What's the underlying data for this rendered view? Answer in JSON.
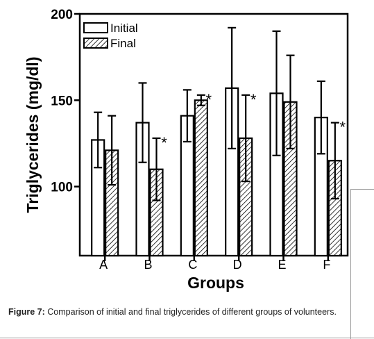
{
  "chart_data": {
    "type": "bar",
    "ylabel": "Triglycerides (mg/dl)",
    "xlabel": "Groups",
    "ylim": [
      60,
      200
    ],
    "yticks": [
      100,
      150,
      200
    ],
    "categories": [
      "A",
      "B",
      "C",
      "D",
      "E",
      "F"
    ],
    "series": [
      {
        "name": "Initial",
        "pattern": "open",
        "values": [
          127,
          137,
          141,
          157,
          154,
          140
        ],
        "error": [
          16,
          23,
          15,
          35,
          36,
          21
        ]
      },
      {
        "name": "Final",
        "pattern": "hatched",
        "values": [
          121,
          110,
          150,
          128,
          149,
          115
        ],
        "error": [
          20,
          18,
          3,
          25,
          27,
          22
        ]
      }
    ],
    "significance": [
      "",
      "*",
      "*",
      "*",
      "",
      "*"
    ],
    "legend_position": "top-left"
  },
  "caption": {
    "label": "Figure 7:",
    "text": "Comparison of initial and final triglycerides of different groups of volunteers."
  }
}
